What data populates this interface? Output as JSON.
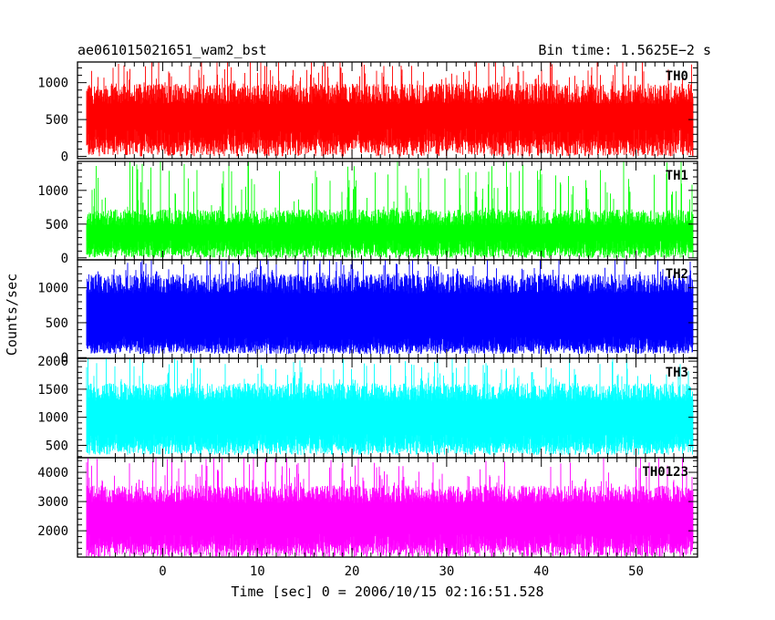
{
  "header": {
    "title": "ae061015021651_wam2_bst",
    "bin_time": "Bin time: 1.5625E−2 s"
  },
  "chart_data": {
    "type": "line",
    "title": "ae061015021651_wam2_bst",
    "xlabel": "Time [sec] 0 = 2006/10/15 02:16:51.528",
    "ylabel": "Counts/sec",
    "xlim": [
      -9,
      56.5
    ],
    "x_ticks": [
      0,
      10,
      20,
      30,
      40,
      50
    ],
    "x_tick_labels": [
      "0",
      "10",
      "20",
      "30",
      "40",
      "50"
    ],
    "data_x_range": [
      -8,
      56
    ],
    "bin_time_s": 0.015625,
    "panels": [
      {
        "name": "TH0",
        "color": "#ff0000",
        "ylim": [
          -30,
          1280
        ],
        "yticks": [
          0,
          500,
          1000
        ],
        "ytick_labels": [
          "0",
          "500",
          "1000"
        ],
        "low_min": 0,
        "low_max": 380,
        "base": 850,
        "noise": 140,
        "peak": 1280
      },
      {
        "name": "TH1",
        "color": "#00ff00",
        "ylim": [
          -30,
          1430
        ],
        "yticks": [
          0,
          500,
          1000
        ],
        "ytick_labels": [
          "0",
          "500",
          "1000"
        ],
        "low_min": 0,
        "low_max": 260,
        "base": 600,
        "noise": 120,
        "peak": 1430
      },
      {
        "name": "TH2",
        "color": "#0000ff",
        "ylim": [
          -10,
          1400
        ],
        "yticks": [
          0,
          500,
          1000
        ],
        "ytick_labels": [
          "0",
          "500",
          "1000"
        ],
        "low_min": 50,
        "low_max": 300,
        "base": 1060,
        "noise": 140,
        "peak": 1400
      },
      {
        "name": "TH3",
        "color": "#00ffff",
        "ylim": [
          280,
          2050
        ],
        "yticks": [
          500,
          1000,
          1500,
          2000
        ],
        "ytick_labels": [
          "500",
          "1000",
          "1500",
          "2000"
        ],
        "low_min": 330,
        "low_max": 700,
        "base": 1450,
        "noise": 160,
        "peak": 2050
      },
      {
        "name": "TH0123",
        "color": "#ff00ff",
        "ylim": [
          1100,
          4500
        ],
        "yticks": [
          2000,
          3000,
          4000
        ],
        "ytick_labels": [
          "2000",
          "3000",
          "4000"
        ],
        "low_min": 1100,
        "low_max": 1900,
        "base": 3250,
        "noise": 300,
        "peak": 4500
      }
    ]
  }
}
